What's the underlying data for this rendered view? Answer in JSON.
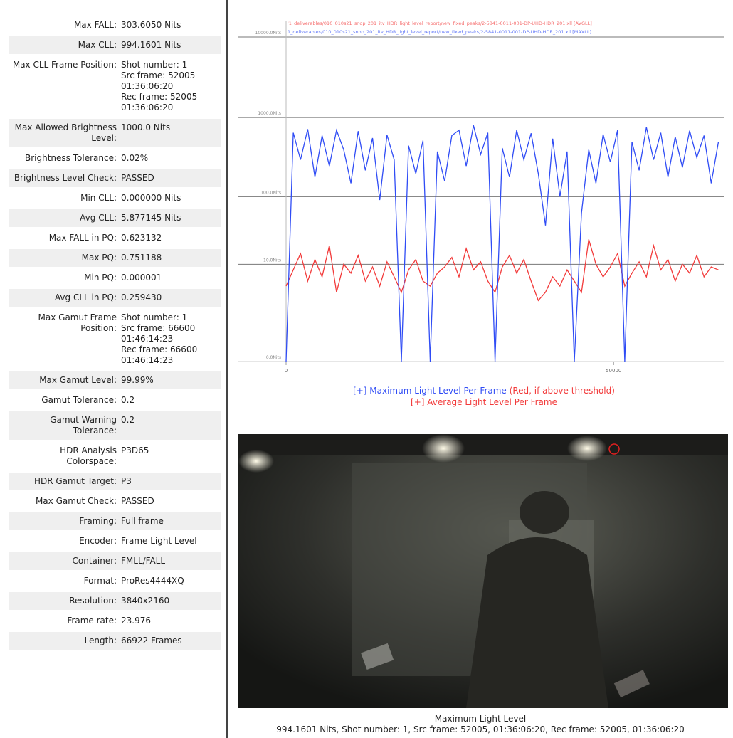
{
  "report": {
    "rows": [
      {
        "label": "Max FALL:",
        "value": [
          "303.6050 Nits"
        ]
      },
      {
        "label": "Max CLL:",
        "value": [
          "994.1601 Nits"
        ]
      },
      {
        "label": "Max CLL Frame Position:",
        "value": [
          "Shot number: 1",
          "Src frame: 52005",
          "01:36:06:20",
          "Rec frame: 52005",
          "01:36:06:20"
        ]
      },
      {
        "label": "Max Allowed Brightness Level:",
        "value": [
          "1000.0 Nits"
        ]
      },
      {
        "label": "Brightness Tolerance:",
        "value": [
          "0.02%"
        ]
      },
      {
        "label": "Brightness Level Check:",
        "value": [
          "PASSED"
        ]
      },
      {
        "label": "Min CLL:",
        "value": [
          "0.000000 Nits"
        ]
      },
      {
        "label": "Avg CLL:",
        "value": [
          "5.877145 Nits"
        ]
      },
      {
        "label": "Max FALL in PQ:",
        "value": [
          "0.623132"
        ]
      },
      {
        "label": "Max PQ:",
        "value": [
          "0.751188"
        ]
      },
      {
        "label": "Min PQ:",
        "value": [
          "0.000001"
        ]
      },
      {
        "label": "Avg CLL in PQ:",
        "value": [
          "0.259430"
        ]
      },
      {
        "label": "Max Gamut Frame Position:",
        "value": [
          "Shot number: 1",
          "Src frame: 66600",
          "01:46:14:23",
          "Rec frame: 66600",
          "01:46:14:23"
        ]
      },
      {
        "label": "Max Gamut Level:",
        "value": [
          "99.99%"
        ]
      },
      {
        "label": "Gamut Tolerance:",
        "value": [
          "0.2"
        ]
      },
      {
        "label": "Gamut Warning Tolerance:",
        "value": [
          "0.2"
        ]
      },
      {
        "label": "HDR Analysis Colorspace:",
        "value": [
          "P3D65"
        ]
      },
      {
        "label": "HDR Gamut Target:",
        "value": [
          "P3"
        ]
      },
      {
        "label": "Max Gamut Check:",
        "value": [
          "PASSED"
        ]
      },
      {
        "label": "Framing:",
        "value": [
          "Full frame"
        ]
      },
      {
        "label": "Encoder:",
        "value": [
          "Frame Light Level"
        ]
      },
      {
        "label": "Container:",
        "value": [
          "FMLL/FALL"
        ]
      },
      {
        "label": "Format:",
        "value": [
          "ProRes4444XQ"
        ]
      },
      {
        "label": "Resolution:",
        "value": [
          "3840x2160"
        ]
      },
      {
        "label": "Frame rate:",
        "value": [
          "23.976"
        ]
      },
      {
        "label": "Length:",
        "value": [
          "66922 Frames"
        ]
      }
    ]
  },
  "chart_data": {
    "type": "line",
    "scale": "pq",
    "x": [
      0,
      1100,
      2200,
      3300,
      4400,
      5500,
      6600,
      7700,
      8800,
      9900,
      11000,
      12100,
      13200,
      14300,
      15400,
      16500,
      17600,
      18700,
      19800,
      20900,
      22000,
      23100,
      24200,
      25300,
      26400,
      27500,
      28600,
      29700,
      30800,
      31900,
      33000,
      34100,
      35200,
      36300,
      37400,
      38500,
      39600,
      40700,
      41800,
      42900,
      44000,
      45100,
      46200,
      47300,
      48400,
      49500,
      50600,
      51700,
      52800,
      53900,
      55000,
      56100,
      57200,
      58300,
      59400,
      60500,
      61600,
      62700,
      63800,
      64900,
      66000
    ],
    "series": [
      {
        "name": "'1_deliverables/010_010s21_snop_201_itv_HDR_light_level_report/new_fixed_peaks/2-5841-0011-001-DP-UHD-HDR_201.xll [AVGLL]",
        "color": "#f23a3a",
        "values": [
          4,
          8,
          15,
          5,
          12,
          6,
          20,
          3,
          10,
          7,
          14,
          5,
          9,
          4,
          11,
          6,
          3,
          8,
          12,
          5,
          4,
          7,
          9,
          13,
          6,
          18,
          8,
          11,
          5,
          3,
          9,
          14,
          7,
          12,
          5,
          2,
          3,
          6,
          4,
          8,
          5,
          3,
          25,
          10,
          6,
          9,
          15,
          4,
          7,
          11,
          6,
          20,
          8,
          12,
          5,
          10,
          7,
          14,
          6,
          9,
          8
        ]
      },
      {
        "name": "1_deliverables/010_010s21_snop_201_itv_HDR_light_level_report/new_fixed_peaks/2-5841-0011-001-DP-UHD-HDR_201.xll [MAXLL]",
        "color": "#2f4cf5",
        "values": [
          0,
          650,
          300,
          720,
          180,
          600,
          250,
          700,
          400,
          150,
          680,
          220,
          560,
          90,
          610,
          300,
          0,
          450,
          200,
          520,
          0,
          380,
          160,
          600,
          700,
          250,
          800,
          350,
          650,
          0,
          420,
          180,
          700,
          300,
          640,
          200,
          40,
          550,
          100,
          380,
          0,
          60,
          400,
          150,
          620,
          280,
          700,
          0,
          500,
          220,
          760,
          300,
          650,
          180,
          580,
          240,
          690,
          320,
          600,
          150,
          500
        ]
      }
    ],
    "xlim": [
      0,
      66922
    ],
    "xticks": [
      0,
      50000
    ],
    "ylim": [
      0,
      10000
    ],
    "yticks": [
      {
        "value": 0,
        "label": "0.0Nits"
      },
      {
        "value": 10,
        "label": "10.0Nits"
      },
      {
        "value": 100,
        "label": "100.0Nits"
      },
      {
        "value": 1000,
        "label": "1000.0Nits"
      },
      {
        "value": 10000,
        "label": "10000.0Nits"
      }
    ],
    "grid": true,
    "legend": [
      {
        "text": "[+] Maximum Light Level Per Frame",
        "color": "#2f4cf5",
        "note": "(Red, if above threshold)",
        "note_color": "#f23a3a"
      },
      {
        "text": "[+] Average Light Level Per Frame",
        "color": "#f23a3a"
      }
    ]
  },
  "image": {
    "title": "Maximum Light Level",
    "caption": "994.1601 Nits, Shot number: 1, Src frame: 52005, 01:36:06:20, Rec frame: 52005, 01:36:06:20"
  }
}
